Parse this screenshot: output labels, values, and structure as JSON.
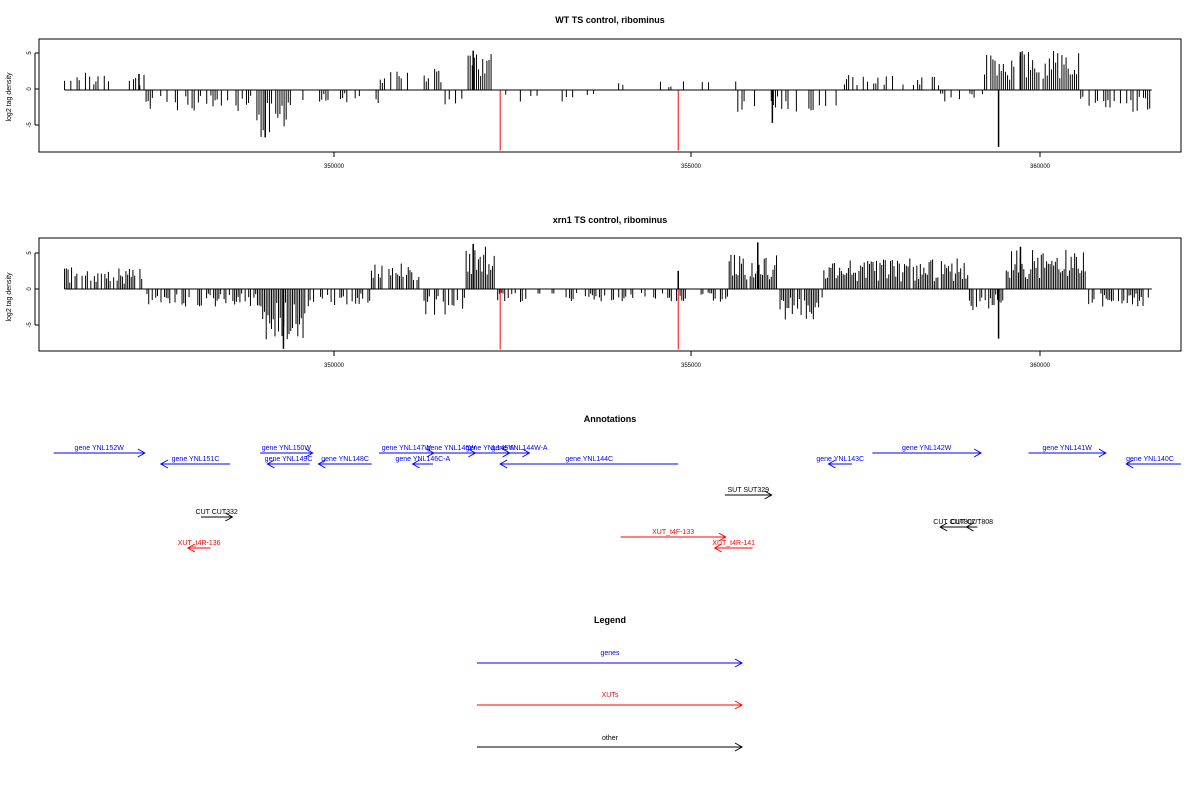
{
  "chart_data": [
    {
      "type": "bar",
      "title": "WT TS control, ribominus",
      "xlabel": "",
      "ylabel": "log2 tag density",
      "x_ticks": [
        "350000",
        "355000",
        "360000"
      ],
      "y_ticks": [
        "5",
        "0",
        "-5"
      ],
      "xlim": [
        346250,
        361900
      ],
      "ylim": [
        -8.5,
        7
      ],
      "bar_color": "#000000",
      "marker_color": "#ff0000",
      "marker_positions": [
        352570,
        355010
      ],
      "marker_depth": -8.3,
      "x_start": 346600,
      "x_end": 361500,
      "profile": {
        "seed": 1,
        "bins": 520,
        "segments": [
          {
            "from": 346600,
            "to": 347700,
            "sign": 1,
            "amp": 2.0,
            "density": 0.35
          },
          {
            "from": 347700,
            "to": 349200,
            "sign": -1,
            "amp": 2.5,
            "density": 0.55
          },
          {
            "from": 349200,
            "to": 349700,
            "sign": -1,
            "amp": 5.5,
            "density": 0.95
          },
          {
            "from": 349700,
            "to": 350900,
            "sign": -1,
            "amp": 1.5,
            "density": 0.35
          },
          {
            "from": 350900,
            "to": 351800,
            "sign": 1,
            "amp": 2.5,
            "density": 0.45
          },
          {
            "from": 351800,
            "to": 352100,
            "sign": -1,
            "amp": 2.0,
            "density": 0.4
          },
          {
            "from": 352100,
            "to": 352500,
            "sign": 1,
            "amp": 4.5,
            "density": 0.9
          },
          {
            "from": 352500,
            "to": 354000,
            "sign": -1,
            "amp": 1.5,
            "density": 0.25
          },
          {
            "from": 354000,
            "to": 355800,
            "sign": 1,
            "amp": 1.0,
            "density": 0.12
          },
          {
            "from": 355800,
            "to": 357200,
            "sign": -1,
            "amp": 2.5,
            "density": 0.5
          },
          {
            "from": 357200,
            "to": 358600,
            "sign": 1,
            "amp": 2.0,
            "density": 0.45
          },
          {
            "from": 358600,
            "to": 359200,
            "sign": -1,
            "amp": 1.5,
            "density": 0.35
          },
          {
            "from": 359200,
            "to": 360500,
            "sign": 1,
            "amp": 4.5,
            "density": 0.95
          },
          {
            "from": 360500,
            "to": 361500,
            "sign": -1,
            "amp": 2.5,
            "density": 0.5
          }
        ],
        "spikes": [
          {
            "x": 347620,
            "y": 2.2
          },
          {
            "x": 349350,
            "y": -6.5
          },
          {
            "x": 352200,
            "y": 5.4
          },
          {
            "x": 356300,
            "y": -4.5
          },
          {
            "x": 359400,
            "y": -7.8
          },
          {
            "x": 359700,
            "y": 5.2
          }
        ]
      }
    },
    {
      "type": "bar",
      "title": "xrn1 TS control, ribominus",
      "xlabel": "",
      "ylabel": "log2 tag density",
      "x_ticks": [
        "350000",
        "355000",
        "360000"
      ],
      "y_ticks": [
        "5",
        "0",
        "-5"
      ],
      "xlim": [
        346250,
        361900
      ],
      "ylim": [
        -8.5,
        7
      ],
      "bar_color": "#000000",
      "marker_color": "#ff0000",
      "marker_positions": [
        352570,
        355010
      ],
      "marker_depth": -8.3,
      "x_start": 346600,
      "x_end": 361500,
      "profile": {
        "seed": 7,
        "bins": 620,
        "segments": [
          {
            "from": 346600,
            "to": 347700,
            "sign": 1,
            "amp": 2.5,
            "density": 0.75
          },
          {
            "from": 347700,
            "to": 349300,
            "sign": -1,
            "amp": 2.0,
            "density": 0.6
          },
          {
            "from": 349300,
            "to": 349900,
            "sign": -1,
            "amp": 6.0,
            "density": 1.0
          },
          {
            "from": 349900,
            "to": 350800,
            "sign": -1,
            "amp": 2.0,
            "density": 0.45
          },
          {
            "from": 350800,
            "to": 351500,
            "sign": 1,
            "amp": 3.0,
            "density": 0.75
          },
          {
            "from": 351500,
            "to": 352100,
            "sign": -1,
            "amp": 3.0,
            "density": 0.6
          },
          {
            "from": 352100,
            "to": 352500,
            "sign": 1,
            "amp": 5.0,
            "density": 1.0
          },
          {
            "from": 352500,
            "to": 355700,
            "sign": -1,
            "amp": 1.5,
            "density": 0.45
          },
          {
            "from": 355700,
            "to": 356400,
            "sign": 1,
            "amp": 4.0,
            "density": 0.95
          },
          {
            "from": 356400,
            "to": 357000,
            "sign": -1,
            "amp": 3.5,
            "density": 0.8
          },
          {
            "from": 357000,
            "to": 359000,
            "sign": 1,
            "amp": 3.5,
            "density": 0.95
          },
          {
            "from": 359000,
            "to": 359500,
            "sign": -1,
            "amp": 2.5,
            "density": 0.6
          },
          {
            "from": 359500,
            "to": 360600,
            "sign": 1,
            "amp": 4.5,
            "density": 1.0
          },
          {
            "from": 360600,
            "to": 361500,
            "sign": -1,
            "amp": 2.0,
            "density": 0.6
          }
        ],
        "spikes": [
          {
            "x": 349600,
            "y": -8.2
          },
          {
            "x": 352200,
            "y": 6.2
          },
          {
            "x": 355010,
            "y": 2.5
          },
          {
            "x": 356100,
            "y": 6.4
          },
          {
            "x": 359400,
            "y": -6.8
          },
          {
            "x": 359700,
            "y": 5.8
          }
        ]
      }
    },
    {
      "type": "table",
      "title": "Annotations",
      "xlim": [
        346250,
        361900
      ],
      "features": [
        {
          "label": "gene YNL152W",
          "color": "#0000ff",
          "start": 346450,
          "end": 347700,
          "row": 0,
          "strand": "+"
        },
        {
          "label": "gene YNL151C",
          "color": "#0000ff",
          "start": 347920,
          "end": 348870,
          "row": 1,
          "strand": "-"
        },
        {
          "label": "gene YNL150W",
          "color": "#0000ff",
          "start": 349280,
          "end": 350000,
          "row": 0,
          "strand": "+"
        },
        {
          "label": "gene YNL149C",
          "color": "#0000ff",
          "start": 349380,
          "end": 349960,
          "row": 1,
          "strand": "-"
        },
        {
          "label": "gene YNL148C",
          "color": "#0000ff",
          "start": 350080,
          "end": 350810,
          "row": 1,
          "strand": "-"
        },
        {
          "label": "gene YNL147W",
          "color": "#0000ff",
          "start": 350910,
          "end": 351660,
          "row": 0,
          "strand": "+"
        },
        {
          "label": "gene YNL146W",
          "color": "#0000ff",
          "start": 351570,
          "end": 352230,
          "row": 0,
          "strand": "+"
        },
        {
          "label": "gene YNL146C-A",
          "color": "#0000ff",
          "start": 351370,
          "end": 351650,
          "row": 1,
          "strand": "-"
        },
        {
          "label": "gene YNL145W",
          "color": "#0000ff",
          "start": 352170,
          "end": 352700,
          "row": 0,
          "strand": "+"
        },
        {
          "label": "gene YNL144W-A",
          "color": "#0000ff",
          "start": 352700,
          "end": 352970,
          "row": 0,
          "strand": "+"
        },
        {
          "label": "gene YNL144C",
          "color": "#0000ff",
          "start": 352570,
          "end": 355010,
          "row": 1,
          "strand": "-"
        },
        {
          "label": "gene YNL143C",
          "color": "#0000ff",
          "start": 357070,
          "end": 357390,
          "row": 1,
          "strand": "-"
        },
        {
          "label": "gene YNL142W",
          "color": "#0000ff",
          "start": 357670,
          "end": 359160,
          "row": 0,
          "strand": "+"
        },
        {
          "label": "gene YNL141W",
          "color": "#0000ff",
          "start": 359810,
          "end": 360870,
          "row": 0,
          "strand": "+"
        },
        {
          "label": "gene YNL140C",
          "color": "#0000ff",
          "start": 361150,
          "end": 361900,
          "row": 1,
          "strand": "-"
        },
        {
          "label": "SUT SUT329",
          "color": "#000000",
          "start": 355650,
          "end": 356290,
          "row": 3,
          "strand": "+"
        },
        {
          "label": "CUT CUT332",
          "color": "#000000",
          "start": 348470,
          "end": 348900,
          "row": 4,
          "strand": "+"
        },
        {
          "label": "CUT CUT807",
          "color": "#000000",
          "start": 358600,
          "end": 358990,
          "row": 5,
          "strand": "-"
        },
        {
          "label": "CUT CUT808",
          "color": "#000000",
          "start": 358960,
          "end": 359110,
          "row": 5,
          "strand": "-"
        },
        {
          "label": "XUT_t4F-133",
          "color": "#ff0000",
          "start": 354220,
          "end": 355660,
          "row": 6,
          "strand": "+"
        },
        {
          "label": "XUT_t4R-141",
          "color": "#ff0000",
          "start": 355510,
          "end": 356030,
          "row": 7,
          "strand": "-"
        },
        {
          "label": "XUT_t4R-136",
          "color": "#ff0000",
          "start": 348290,
          "end": 348600,
          "row": 7,
          "strand": "-"
        }
      ]
    },
    {
      "type": "table",
      "title": "Legend",
      "entries": [
        {
          "label": "genes",
          "color": "#0000ff"
        },
        {
          "label": "XUTs",
          "color": "#ff0000"
        },
        {
          "label": "other",
          "color": "#000000"
        }
      ]
    }
  ]
}
